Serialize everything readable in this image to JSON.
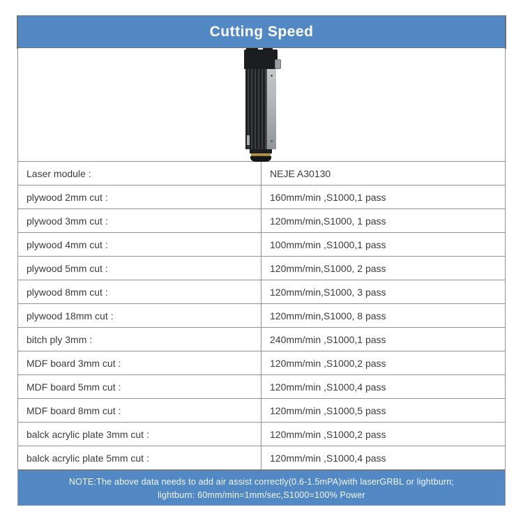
{
  "header": {
    "title": "Cutting Speed"
  },
  "product_image": {
    "description": "laser module tower",
    "colors": {
      "body_dark": "#1e2022",
      "side_panel": "#a8acb0",
      "brass_ring": "#b3974e"
    }
  },
  "table": {
    "rows": [
      {
        "label": "Laser module :",
        "value": "NEJE A30130"
      },
      {
        "label": "plywood 2mm cut :",
        "value": "160mm/min ,S1000,1 pass"
      },
      {
        "label": "plywood 3mm cut :",
        "value": "120mm/min,S1000, 1 pass"
      },
      {
        "label": "plywood 4mm cut :",
        "value": "100mm/min ,S1000,1 pass"
      },
      {
        "label": "plywood 5mm cut :",
        "value": "120mm/min,S1000, 2 pass"
      },
      {
        "label": "plywood 8mm cut :",
        "value": "120mm/min,S1000, 3 pass"
      },
      {
        "label": "plywood 18mm cut :",
        "value": "120mm/min,S1000, 8 pass"
      },
      {
        "label": "bitch ply 3mm :",
        "value": "240mm/min ,S1000,1 pass"
      },
      {
        "label": "MDF board 3mm cut :",
        "value": "120mm/min ,S1000,2 pass"
      },
      {
        "label": "MDF board 5mm cut :",
        "value": "120mm/min ,S1000,4 pass"
      },
      {
        "label": "MDF board 8mm cut :",
        "value": "120mm/min ,S1000,5 pass"
      },
      {
        "label": "balck acrylic plate 3mm cut :",
        "value": "120mm/min ,S1000,2 pass"
      },
      {
        "label": "balck acrylic plate 5mm cut :",
        "value": "120mm/min ,S1000,4 pass"
      }
    ]
  },
  "footer": {
    "line1": "NOTE:The above data needs to add air assist correctly(0.6-1.5mPA)with laserGRBL or lightburn;",
    "line2": "lightburn: 60mm/min=1mm/sec,S1000=100% Power"
  },
  "colors": {
    "accent_blue": "#5289c5",
    "grid_gray": "#8d9296",
    "text_dark": "#3b3b3b"
  }
}
